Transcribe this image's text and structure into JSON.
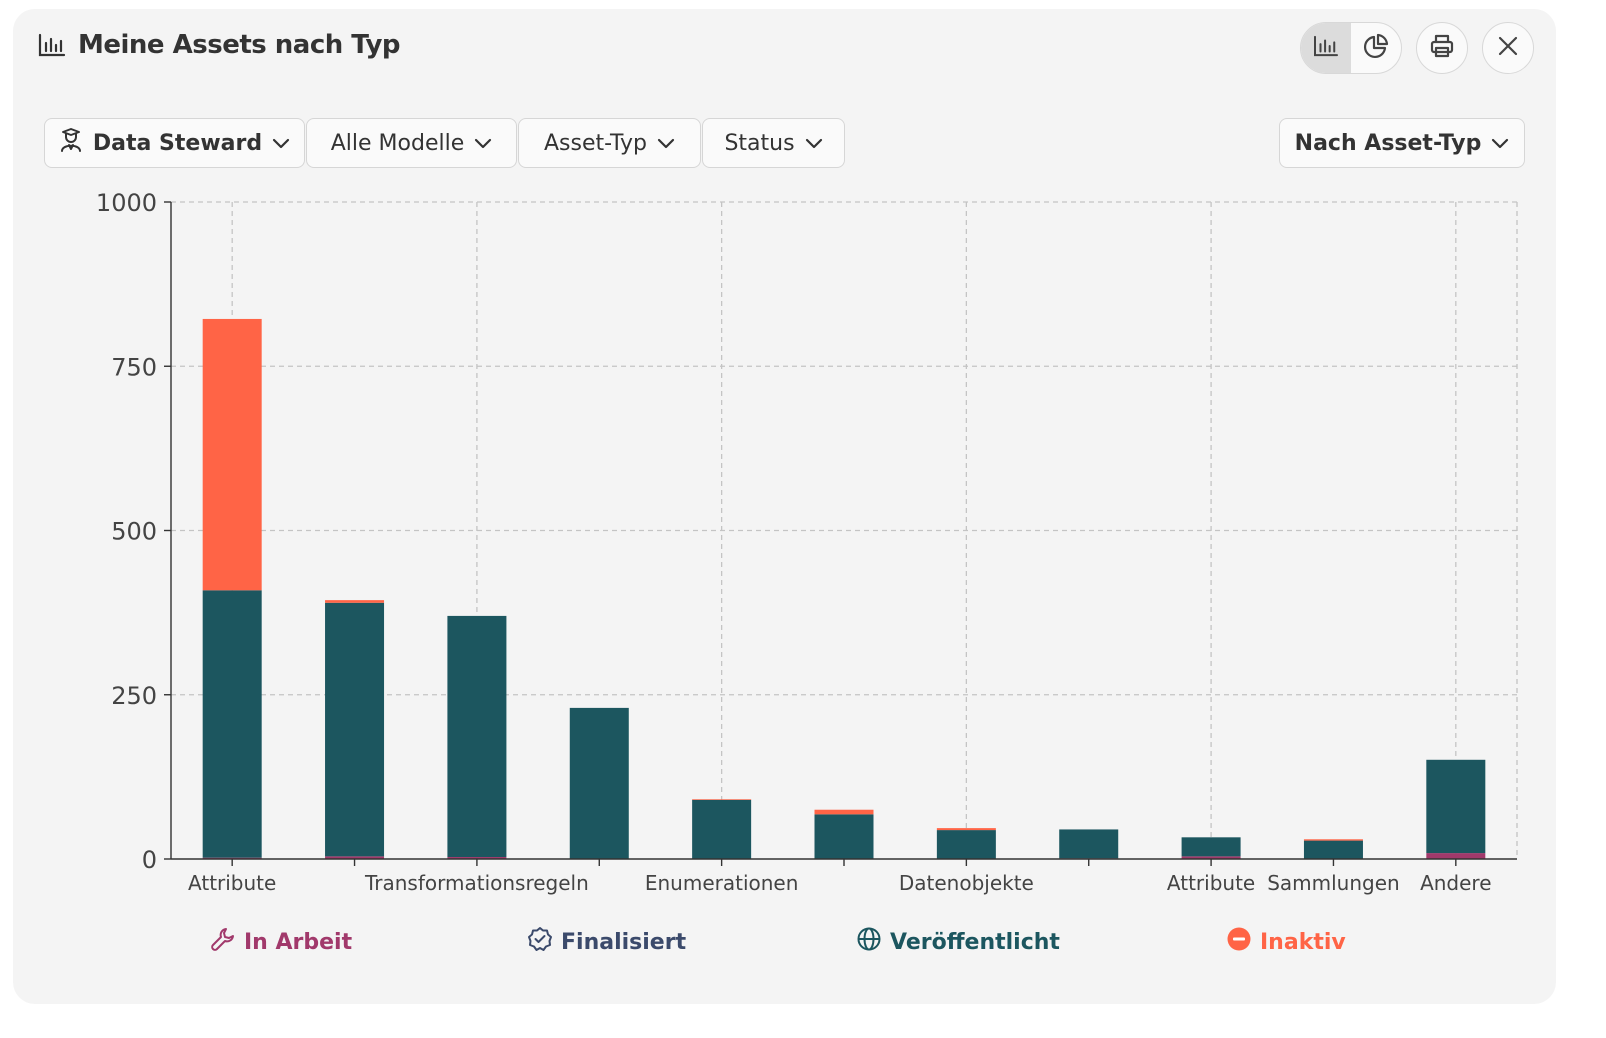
{
  "header": {
    "title": "Meine Assets nach Typ",
    "title_icon": "bar-chart-icon",
    "view_toggle": [
      {
        "icon": "bar-chart-icon",
        "active": true
      },
      {
        "icon": "pie-chart-icon",
        "active": false
      }
    ],
    "print_icon": "printer-icon",
    "close_icon": "close-icon"
  },
  "filters": [
    {
      "label": "Data Steward",
      "icon": "user-icon",
      "bold": true
    },
    {
      "label": "Alle Modelle",
      "bold": false
    },
    {
      "label": "Asset-Typ",
      "bold": false
    },
    {
      "label": "Status",
      "bold": false
    }
  ],
  "group_by": {
    "label": "Nach Asset-Typ"
  },
  "colors": {
    "in_arbeit": "#a1396b",
    "finalisiert": "#3b4a6b",
    "veroeffentlicht": "#1c565f",
    "inaktiv": "#ff6446"
  },
  "legend": [
    {
      "label": "In Arbeit",
      "icon": "wrench-icon",
      "color": "#a1396b"
    },
    {
      "label": "Finalisiert",
      "icon": "check-badge-icon",
      "color": "#3b4a6b"
    },
    {
      "label": "Veröffentlicht",
      "icon": "globe-icon",
      "color": "#1c565f"
    },
    {
      "label": "Inaktiv",
      "icon": "minus-circle-icon",
      "color": "#ff6446"
    }
  ],
  "chart_data": {
    "type": "bar",
    "stacked": true,
    "categories": [
      "Attribute",
      "",
      "Transformationsregeln",
      "",
      "Enumerationen",
      "",
      "Datenobjekte",
      "",
      "Attribute",
      "Sammlungen",
      "Andere"
    ],
    "series": [
      {
        "name": "In Arbeit",
        "color": "#a1396b",
        "values": [
          2,
          4,
          3,
          0,
          0,
          0,
          0,
          1,
          4,
          0,
          9
        ]
      },
      {
        "name": "Finalisiert",
        "color": "#3b4a6b",
        "values": [
          0,
          0,
          0,
          0,
          0,
          0,
          0,
          0,
          0,
          0,
          0
        ]
      },
      {
        "name": "Veröffentlicht",
        "color": "#1c565f",
        "values": [
          407,
          386,
          367,
          230,
          90,
          68,
          44,
          44,
          29,
          28,
          142
        ]
      },
      {
        "name": "Inaktiv",
        "color": "#ff6446",
        "values": [
          413,
          4,
          0,
          0,
          1,
          7,
          3,
          0,
          0,
          2,
          0
        ]
      }
    ],
    "ylim": [
      0,
      1000
    ],
    "yticks": [
      0,
      250,
      500,
      750,
      1000
    ],
    "grid": true,
    "legend_position": "bottom"
  }
}
